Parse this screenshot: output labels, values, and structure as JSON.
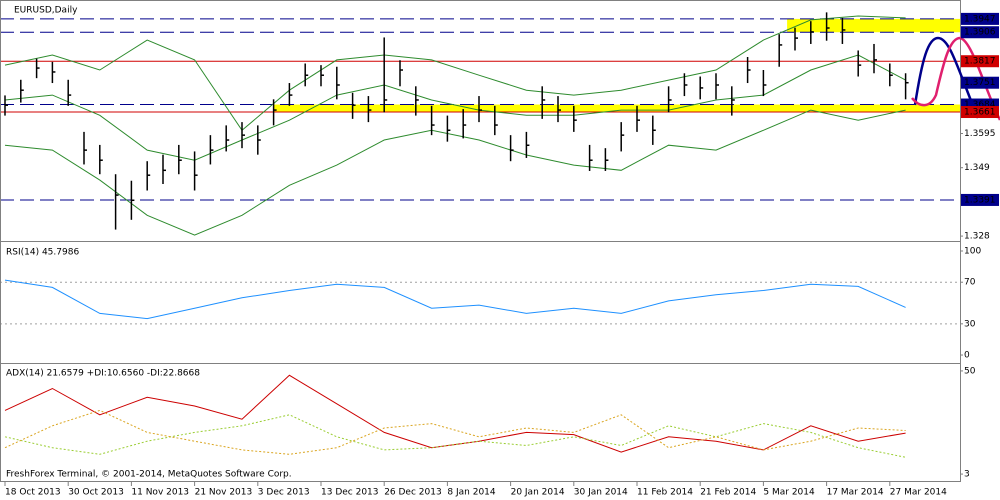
{
  "chart_data": {
    "type": "ohlc",
    "title": "EURUSD,Daily",
    "footer": "FreshForex Terminal, © 2001-2014, MetaQuotes Software Corp.",
    "x": [
      0,
      2,
      4,
      6,
      8,
      10,
      12,
      14,
      16,
      18,
      20,
      22,
      24,
      26,
      28,
      30,
      32,
      34,
      36,
      38,
      40,
      42,
      44,
      46,
      48,
      50,
      52,
      54,
      56,
      58,
      60,
      62,
      64,
      66,
      68,
      70,
      72,
      74,
      76,
      78,
      80,
      82,
      84,
      86,
      88,
      90,
      92,
      94,
      96,
      98,
      100,
      102,
      104,
      106,
      108,
      110,
      112,
      114
    ],
    "high": [
      1.3712,
      1.376,
      1.3825,
      1.3815,
      1.376,
      1.36,
      1.356,
      1.347,
      1.345,
      1.351,
      1.353,
      1.356,
      1.354,
      1.359,
      1.362,
      1.363,
      1.362,
      1.37,
      1.375,
      1.381,
      1.3805,
      1.38,
      1.372,
      1.371,
      1.389,
      1.382,
      1.374,
      1.368,
      1.365,
      1.367,
      1.371,
      1.368,
      1.359,
      1.36,
      1.374,
      1.371,
      1.368,
      1.356,
      1.355,
      1.363,
      1.368,
      1.365,
      1.374,
      1.378,
      1.377,
      1.378,
      1.374,
      1.383,
      1.379,
      1.39,
      1.392,
      1.394,
      1.3967,
      1.395,
      1.385,
      1.387,
      1.381,
      1.378
    ],
    "low": [
      1.365,
      1.369,
      1.3765,
      1.375,
      1.368,
      1.35,
      1.347,
      1.33,
      1.333,
      1.342,
      1.344,
      1.347,
      1.342,
      1.35,
      1.354,
      1.355,
      1.353,
      1.362,
      1.368,
      1.374,
      1.374,
      1.37,
      1.364,
      1.363,
      1.366,
      1.374,
      1.365,
      1.359,
      1.357,
      1.358,
      1.363,
      1.359,
      1.351,
      1.352,
      1.364,
      1.363,
      1.36,
      1.348,
      1.348,
      1.354,
      1.36,
      1.356,
      1.366,
      1.371,
      1.37,
      1.37,
      1.365,
      1.375,
      1.371,
      1.38,
      1.385,
      1.387,
      1.388,
      1.387,
      1.377,
      1.378,
      1.374,
      1.37
    ],
    "close": [
      1.3682,
      1.3728,
      1.3796,
      1.3784,
      1.3713,
      1.3544,
      1.3513,
      1.3406,
      1.339,
      1.3467,
      1.3482,
      1.3513,
      1.3467,
      1.3544,
      1.3575,
      1.359,
      1.3575,
      1.3667,
      1.3713,
      1.3774,
      1.3774,
      1.3744,
      1.3682,
      1.3667,
      1.3698,
      1.379,
      1.3698,
      1.3621,
      1.3605,
      1.3621,
      1.3667,
      1.3621,
      1.3544,
      1.3559,
      1.3698,
      1.3667,
      1.3636,
      1.3513,
      1.3513,
      1.359,
      1.3636,
      1.3605,
      1.3698,
      1.3744,
      1.3735,
      1.3744,
      1.3698,
      1.379,
      1.3744,
      1.3867,
      1.3888,
      1.3907,
      1.3919,
      1.3913,
      1.3805,
      1.3821,
      1.3774,
      1.3751
    ],
    "bar_color": "#000000",
    "xticks": [
      {
        "value": 0,
        "label": "18 Oct 2013"
      },
      {
        "value": 8,
        "label": "30 Oct 2013"
      },
      {
        "value": 16,
        "label": "11 Nov 2013"
      },
      {
        "value": 24,
        "label": "21 Nov 2013"
      },
      {
        "value": 32,
        "label": "3 Dec 2013"
      },
      {
        "value": 40,
        "label": "13 Dec 2013"
      },
      {
        "value": 48,
        "label": "26 Dec 2013"
      },
      {
        "value": 56,
        "label": "8 Jan 2014"
      },
      {
        "value": 64,
        "label": "20 Jan 2014"
      },
      {
        "value": 72,
        "label": "30 Jan 2014"
      },
      {
        "value": 80,
        "label": "11 Feb 2014"
      },
      {
        "value": 88,
        "label": "21 Feb 2014"
      },
      {
        "value": 96,
        "label": "5 Mar 2014"
      },
      {
        "value": 104,
        "label": "17 Mar 2014"
      },
      {
        "value": 112,
        "label": "27 Mar 2014"
      }
    ],
    "ylim": [
      1.3268,
      1.4005
    ],
    "yticks": [
      1.3595,
      1.349,
      1.328
    ],
    "levels": [
      {
        "value": 1.3947,
        "color": "#00008b",
        "style": "dashed"
      },
      {
        "value": 1.3906,
        "color": "#00008b",
        "style": "dashed"
      },
      {
        "value": 1.3817,
        "color": "#d00000",
        "style": "solid"
      },
      {
        "value": 1.3684,
        "color": "#00008b",
        "style": "dashed"
      },
      {
        "value": 1.3661,
        "color": "#d00000",
        "style": "solid"
      },
      {
        "value": 1.3391,
        "color": "#00008b",
        "style": "dashed"
      }
    ],
    "last_price_color": "#00008b",
    "zones": [
      {
        "from": 1.3906,
        "to": 1.3947,
        "start": 99,
        "color": "#ffff00"
      },
      {
        "from": 1.3661,
        "to": 1.3684,
        "start": 34,
        "color": "#ffff00"
      }
    ],
    "indicator_x": [
      0,
      6,
      12,
      18,
      24,
      30,
      36,
      42,
      48,
      54,
      60,
      66,
      72,
      78,
      84,
      90,
      96,
      102,
      108,
      114
    ],
    "bands": {
      "color": "#2e8b2e",
      "upper": [
        1.3805,
        1.3836,
        1.379,
        1.3882,
        1.3821,
        1.3605,
        1.3728,
        1.3821,
        1.3836,
        1.3821,
        1.3774,
        1.3728,
        1.3713,
        1.3728,
        1.3759,
        1.379,
        1.3882,
        1.3944,
        1.3956,
        1.395
      ],
      "middle": [
        1.3698,
        1.3713,
        1.3651,
        1.3544,
        1.3513,
        1.3575,
        1.3636,
        1.3713,
        1.3744,
        1.3698,
        1.3667,
        1.3651,
        1.3651,
        1.3667,
        1.3667,
        1.3698,
        1.3713,
        1.379,
        1.3836,
        1.3759
      ],
      "lower": [
        1.3559,
        1.3544,
        1.3452,
        1.3344,
        1.3283,
        1.3344,
        1.3436,
        1.3498,
        1.3575,
        1.3605,
        1.3575,
        1.3529,
        1.3498,
        1.3482,
        1.3559,
        1.3544,
        1.3605,
        1.3667,
        1.3636,
        1.3667
      ]
    },
    "rsi": {
      "label": "RSI(14) 45.7986",
      "color": "#1e90ff",
      "values": [
        72,
        65,
        40,
        35,
        45,
        55,
        62,
        68,
        65,
        45,
        48,
        40,
        45,
        40,
        52,
        58,
        62,
        68,
        66,
        45.7986
      ],
      "ylim": [
        -6.7,
        107.7
      ],
      "yticks": [
        0,
        30,
        70,
        100
      ],
      "levels": [
        30,
        70
      ]
    },
    "adx": {
      "label": "ADX(14) 21.6579 +DI:10.6560 -DI:22.8668",
      "ylim": [
        0.3,
        52.7
      ],
      "yticks": [
        3,
        50
      ],
      "series": [
        {
          "color": "#cc0000",
          "style": "solid",
          "values": [
            32,
            42,
            30,
            38,
            34,
            28,
            48,
            35,
            22,
            15,
            18,
            22,
            21,
            13,
            20,
            18,
            14,
            25,
            18,
            21.6579
          ]
        },
        {
          "color": "#9acd32",
          "style": "dotted",
          "values": [
            20,
            15,
            12,
            18,
            22,
            25,
            30,
            20,
            14,
            15,
            18,
            16,
            20,
            16,
            25,
            20,
            26,
            22,
            15,
            10.656
          ]
        },
        {
          "color": "#daa520",
          "style": "dotted",
          "values": [
            15,
            25,
            32,
            22,
            18,
            14,
            12,
            15,
            24,
            26,
            20,
            24,
            22,
            30,
            15,
            20,
            14,
            18,
            24,
            22.8668
          ]
        }
      ]
    }
  }
}
